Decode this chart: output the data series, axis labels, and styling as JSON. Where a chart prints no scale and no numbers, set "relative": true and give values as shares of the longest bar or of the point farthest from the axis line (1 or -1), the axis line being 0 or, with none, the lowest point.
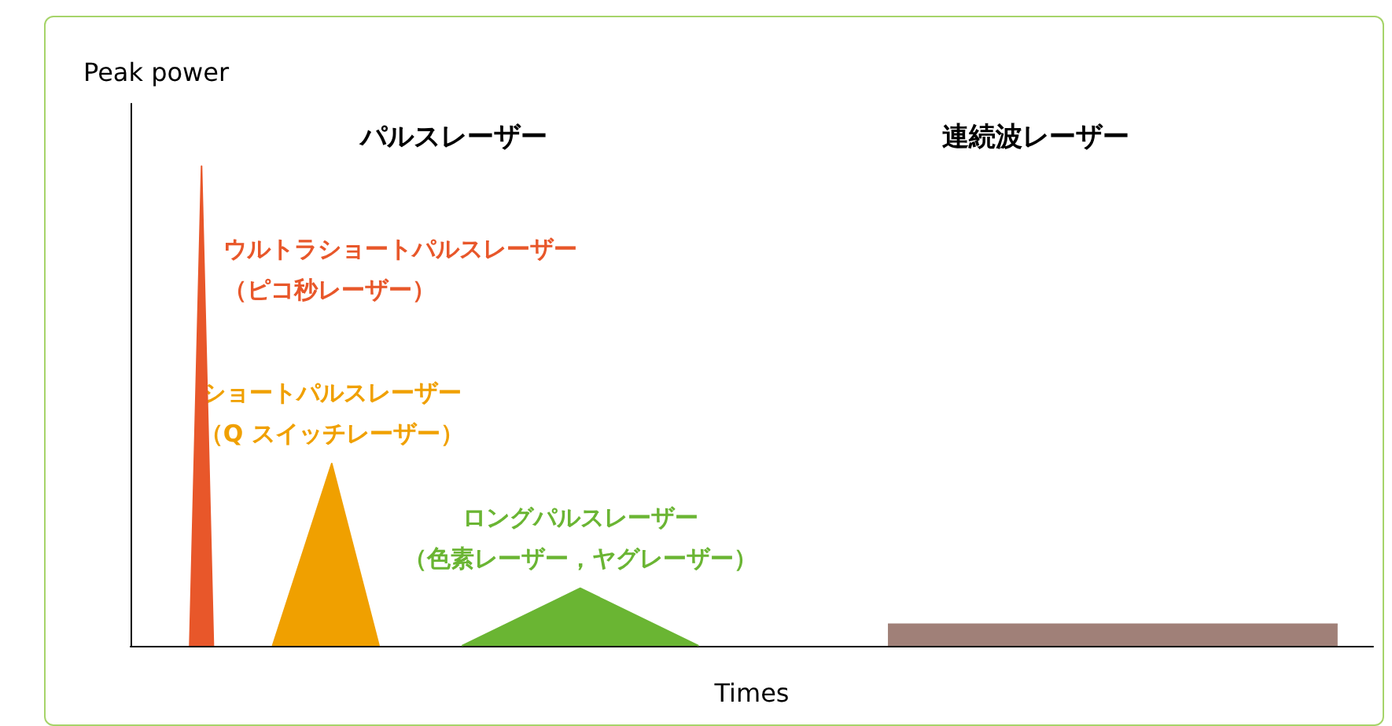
{
  "chart_data": {
    "type": "area",
    "relative": true,
    "xlabel": "Times",
    "ylabel": "Peak power",
    "legend": false,
    "grid": false,
    "annotations": [
      "パルスレーザー",
      "連続波レーザー"
    ],
    "categories": [
      null,
      null,
      null,
      null,
      null,
      null,
      null,
      null,
      null,
      null,
      null,
      null,
      null,
      null,
      null,
      null,
      null,
      null,
      null,
      null,
      null,
      null,
      null,
      null,
      null,
      null,
      null,
      null,
      null,
      null,
      null,
      null,
      null,
      null,
      null,
      null,
      null,
      null,
      null,
      null,
      null,
      null,
      null,
      null,
      null,
      null,
      null,
      null,
      null,
      null,
      null,
      null,
      null,
      null,
      null,
      null,
      null,
      null,
      null,
      null,
      null,
      null,
      null,
      null,
      null,
      null,
      null,
      null,
      null,
      null,
      null,
      null,
      null,
      null,
      null,
      null,
      null,
      null,
      null,
      null,
      null,
      null,
      null,
      null,
      null,
      null,
      null,
      null,
      null,
      null,
      null,
      null,
      null,
      null,
      null,
      null,
      null,
      null,
      null,
      null,
      null,
      null,
      null,
      null,
      null,
      null
    ],
    "series": [
      {
        "name": "ウルトラショートパルスレーザー（ピコ秒レーザー）",
        "color": "#e8572a",
        "values": [
          null,
          null,
          null,
          null,
          null,
          0,
          1,
          0,
          null,
          null,
          null,
          null,
          null,
          null,
          null,
          null,
          null,
          null,
          null,
          null,
          null,
          null,
          null,
          null,
          null,
          null,
          null,
          null,
          null,
          null,
          null,
          null,
          null,
          null,
          null,
          null,
          null,
          null,
          null,
          null,
          null,
          null,
          null,
          null,
          null,
          null,
          null,
          null,
          null,
          null,
          null,
          null,
          null,
          null,
          null,
          null,
          null,
          null,
          null,
          null,
          null,
          null,
          null,
          null,
          null,
          null,
          null,
          null,
          null,
          null,
          null,
          null,
          null,
          null,
          null,
          null,
          null,
          null,
          null,
          null,
          null,
          null,
          null,
          null,
          null,
          null,
          null,
          null,
          null,
          null,
          null,
          null,
          null,
          null,
          null,
          null,
          null,
          null,
          null,
          null,
          null,
          null,
          null,
          null,
          null,
          null
        ]
      },
      {
        "name": "ショートパルスレーザー（Q スイッチレーザー）",
        "color": "#f0a000",
        "values": [
          null,
          null,
          null,
          null,
          null,
          null,
          null,
          null,
          null,
          null,
          null,
          null,
          0,
          null,
          null,
          null,
          null,
          0.38,
          null,
          null,
          null,
          0,
          null,
          null,
          null,
          null,
          null,
          null,
          null,
          null,
          null,
          null,
          null,
          null,
          null,
          null,
          null,
          null,
          null,
          null,
          null,
          null,
          null,
          null,
          null,
          null,
          null,
          null,
          null,
          null,
          null,
          null,
          null,
          null,
          null,
          null,
          null,
          null,
          null,
          null,
          null,
          null,
          null,
          null,
          null,
          null,
          null,
          null,
          null,
          null,
          null,
          null,
          null,
          null,
          null,
          null,
          null,
          null,
          null,
          null,
          null,
          null,
          null,
          null,
          null,
          null,
          null,
          null,
          null,
          null,
          null,
          null,
          null,
          null,
          null,
          null,
          null,
          null,
          null,
          null,
          null,
          null,
          null,
          null,
          null,
          null
        ]
      },
      {
        "name": "ロングパルスレーザー（色素レーザー，ヤグレーザー）",
        "color": "#6ab533",
        "values": [
          null,
          null,
          null,
          null,
          null,
          null,
          null,
          null,
          null,
          null,
          null,
          null,
          null,
          null,
          null,
          null,
          null,
          null,
          null,
          null,
          null,
          null,
          null,
          null,
          null,
          null,
          null,
          null,
          0,
          null,
          null,
          null,
          null,
          null,
          null,
          null,
          null,
          null,
          0.12,
          null,
          null,
          null,
          null,
          null,
          null,
          null,
          null,
          null,
          0,
          null,
          null,
          null,
          null,
          null,
          null,
          null,
          null,
          null,
          null,
          null,
          null,
          null,
          null,
          null,
          null,
          null,
          null,
          null,
          null,
          null,
          null,
          null,
          null,
          null,
          null,
          null,
          null,
          null,
          null,
          null,
          null,
          null,
          null,
          null,
          null,
          null,
          null,
          null,
          null,
          null,
          null,
          null,
          null,
          null,
          null,
          null,
          null,
          null,
          null,
          null,
          null,
          null,
          null,
          null,
          null,
          null
        ]
      },
      {
        "color": "#a08078",
        "values": [
          null,
          null,
          null,
          null,
          null,
          null,
          null,
          null,
          null,
          null,
          null,
          null,
          null,
          null,
          null,
          null,
          null,
          null,
          null,
          null,
          null,
          null,
          null,
          null,
          null,
          null,
          null,
          null,
          null,
          null,
          null,
          null,
          null,
          null,
          null,
          null,
          null,
          null,
          null,
          null,
          null,
          null,
          null,
          null,
          null,
          null,
          null,
          null,
          null,
          null,
          null,
          null,
          null,
          null,
          null,
          null,
          null,
          null,
          null,
          null,
          null,
          null,
          null,
          null,
          0.045,
          null,
          null,
          null,
          null,
          null,
          null,
          null,
          null,
          null,
          null,
          null,
          null,
          null,
          null,
          null,
          null,
          null,
          null,
          null,
          null,
          null,
          null,
          null,
          null,
          null,
          null,
          null,
          null,
          null,
          null,
          null,
          null,
          null,
          null,
          null,
          null,
          null,
          0.045,
          null,
          null,
          null
        ]
      }
    ]
  }
}
